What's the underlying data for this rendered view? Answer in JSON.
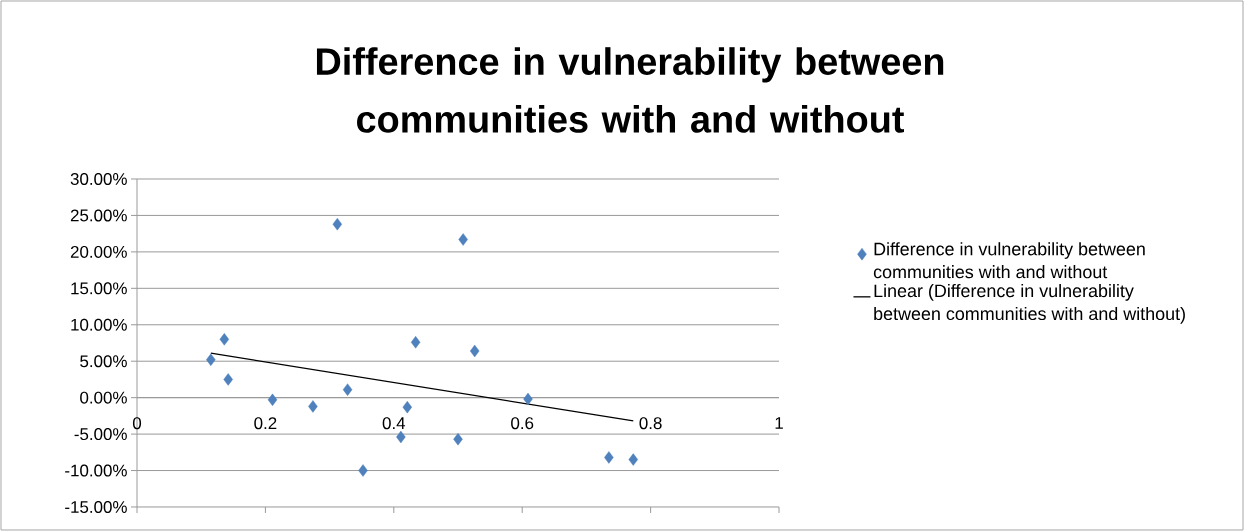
{
  "chart_data": {
    "type": "scatter",
    "title": "Difference in vulnerability between communities with and without",
    "xlim": [
      0,
      1
    ],
    "xticks": [
      0,
      0.2,
      0.4,
      0.6,
      0.8,
      1
    ],
    "ylim": [
      -15,
      30
    ],
    "yticks": [
      {
        "value": -15,
        "label": "-15.00%"
      },
      {
        "value": -10,
        "label": "-10.00%"
      },
      {
        "value": -5,
        "label": "-5.00%"
      },
      {
        "value": 0,
        "label": "0.00%"
      },
      {
        "value": 5,
        "label": "5.00%"
      },
      {
        "value": 10,
        "label": "10.00%"
      },
      {
        "value": 15,
        "label": "15.00%"
      },
      {
        "value": 20,
        "label": "20.00%"
      },
      {
        "value": 25,
        "label": "25.00%"
      },
      {
        "value": 30,
        "label": "30.00%"
      }
    ],
    "grid": "y",
    "legend": "right",
    "marker": "diamond",
    "series": [
      {
        "name": "Difference in vulnerability between communities with and without",
        "color": "#4f81bd",
        "x": [
          0.115,
          0.136,
          0.142,
          0.211,
          0.274,
          0.312,
          0.328,
          0.352,
          0.411,
          0.421,
          0.434,
          0.5,
          0.508,
          0.526,
          0.609,
          0.735,
          0.773
        ],
        "values": [
          5.2,
          8.0,
          2.5,
          -0.3,
          -1.2,
          23.8,
          1.1,
          -10.0,
          -5.4,
          -1.3,
          7.6,
          -5.7,
          21.7,
          6.4,
          -0.2,
          -8.2,
          -8.5
        ]
      },
      {
        "name": "Linear (Difference in vulnerability between communities with and without)",
        "type": "line",
        "color": "#000000",
        "marker": "none",
        "x": [
          0.115,
          0.773
        ],
        "values": [
          6.1,
          -3.2
        ]
      }
    ]
  }
}
